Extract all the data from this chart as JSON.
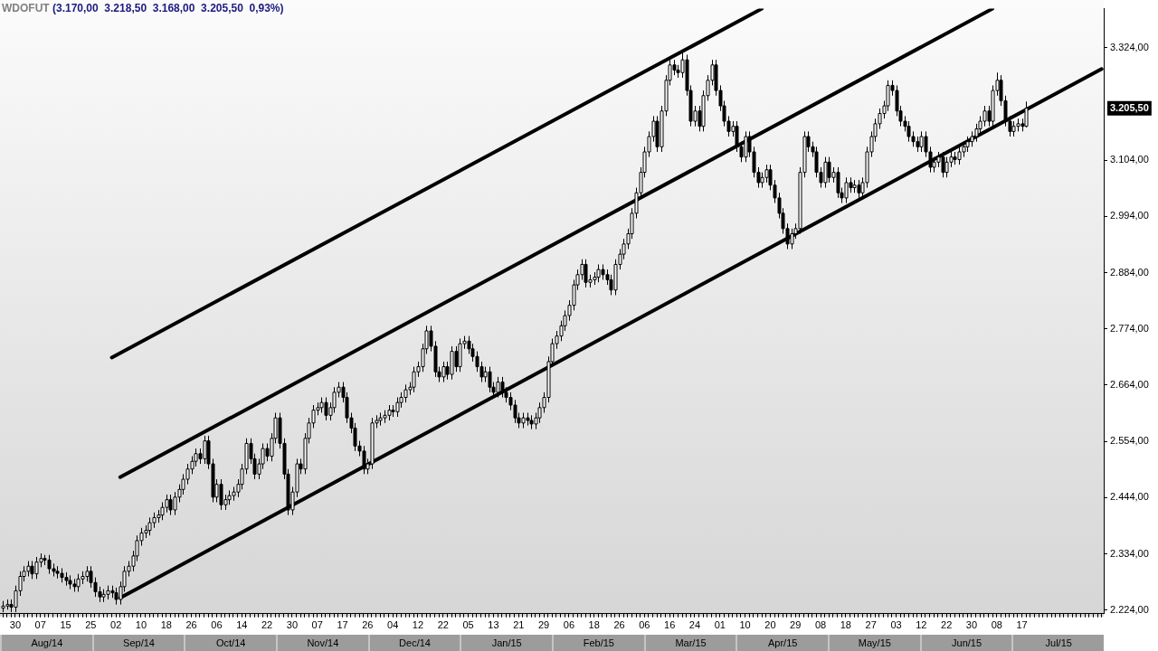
{
  "chart_data": {
    "type": "candlestick",
    "title": "WDOFUT",
    "subtitle": "(3.170,00  3.218,50  3.168,00  3.205,50  0,93%)",
    "categories": [
      null,
      null,
      null,
      "30",
      null,
      null,
      null,
      null,
      null,
      "07",
      null,
      null,
      null,
      null,
      null,
      "15",
      null,
      null,
      null,
      null,
      null,
      "25",
      null,
      null,
      null,
      null,
      null,
      "02",
      null,
      null,
      null,
      null,
      null,
      "10",
      null,
      null,
      null,
      null,
      null,
      "18",
      null,
      null,
      null,
      null,
      null,
      "26",
      null,
      null,
      null,
      null,
      null,
      "06",
      null,
      null,
      null,
      null,
      null,
      "14",
      null,
      null,
      null,
      null,
      null,
      "22",
      null,
      null,
      null,
      null,
      null,
      "30",
      null,
      null,
      null,
      null,
      null,
      "07",
      null,
      null,
      null,
      null,
      null,
      "17",
      null,
      null,
      null,
      null,
      null,
      "26",
      null,
      null,
      null,
      null,
      null,
      "04",
      null,
      null,
      null,
      null,
      null,
      "12",
      null,
      null,
      null,
      null,
      null,
      "22",
      null,
      null,
      null,
      null,
      null,
      "05",
      null,
      null,
      null,
      null,
      null,
      "13",
      null,
      null,
      null,
      null,
      null,
      "21",
      null,
      null,
      null,
      null,
      null,
      "29",
      null,
      null,
      null,
      null,
      null,
      "06",
      null,
      null,
      null,
      null,
      null,
      "18",
      null,
      null,
      null,
      null,
      null,
      "26",
      null,
      null,
      null,
      null,
      null,
      "06",
      null,
      null,
      null,
      null,
      null,
      "16",
      null,
      null,
      null,
      null,
      null,
      "24",
      null,
      null,
      null,
      null,
      null,
      "01",
      null,
      null,
      null,
      null,
      null,
      "10",
      null,
      null,
      null,
      null,
      null,
      "20",
      null,
      null,
      null,
      null,
      null,
      "29",
      null,
      null,
      null,
      null,
      null,
      "08",
      null,
      null,
      null,
      null,
      null,
      "18",
      null,
      null,
      null,
      null,
      null,
      "27",
      null,
      null,
      null,
      null,
      null,
      "03",
      null,
      null,
      null,
      null,
      null,
      "12",
      null,
      null,
      null,
      null,
      null,
      "22",
      null,
      null,
      null,
      null,
      null,
      "30",
      null,
      null,
      null,
      null,
      null,
      "08",
      null,
      null,
      null,
      null,
      null,
      "17",
      null,
      null,
      null,
      null,
      null,
      null,
      null,
      null,
      null,
      null,
      null,
      null,
      null,
      null,
      null,
      null,
      null,
      null,
      null
    ],
    "ohlc": [
      [
        2228,
        2242,
        2220,
        2232
      ],
      [
        2232,
        2245,
        2225,
        2235
      ],
      [
        2235,
        2245,
        2220,
        2230
      ],
      [
        2230,
        2272,
        2220,
        2262
      ],
      [
        2262,
        2300,
        2252,
        2290
      ],
      [
        2290,
        2310,
        2280,
        2300
      ],
      [
        2300,
        2320,
        2290,
        2310
      ],
      [
        2310,
        2320,
        2285,
        2295
      ],
      [
        2295,
        2328,
        2285,
        2318
      ],
      [
        2318,
        2335,
        2308,
        2325
      ],
      [
        2325,
        2332,
        2312,
        2322
      ],
      [
        2322,
        2332,
        2295,
        2305
      ],
      [
        2305,
        2315,
        2290,
        2300
      ],
      [
        2300,
        2310,
        2286,
        2296
      ],
      [
        2296,
        2306,
        2278,
        2288
      ],
      [
        2288,
        2298,
        2272,
        2282
      ],
      [
        2282,
        2292,
        2265,
        2275
      ],
      [
        2275,
        2285,
        2260,
        2270
      ],
      [
        2270,
        2295,
        2260,
        2285
      ],
      [
        2285,
        2300,
        2275,
        2290
      ],
      [
        2290,
        2310,
        2280,
        2300
      ],
      [
        2300,
        2310,
        2268,
        2278
      ],
      [
        2278,
        2288,
        2250,
        2260
      ],
      [
        2260,
        2270,
        2240,
        2250
      ],
      [
        2250,
        2265,
        2240,
        2255
      ],
      [
        2255,
        2272,
        2245,
        2262
      ],
      [
        2262,
        2272,
        2248,
        2258
      ],
      [
        2258,
        2268,
        2235,
        2245
      ],
      [
        2245,
        2280,
        2235,
        2270
      ],
      [
        2270,
        2310,
        2260,
        2300
      ],
      [
        2300,
        2320,
        2290,
        2310
      ],
      [
        2310,
        2340,
        2300,
        2330
      ],
      [
        2330,
        2370,
        2320,
        2360
      ],
      [
        2360,
        2385,
        2350,
        2375
      ],
      [
        2375,
        2390,
        2365,
        2380
      ],
      [
        2380,
        2405,
        2370,
        2395
      ],
      [
        2395,
        2415,
        2385,
        2405
      ],
      [
        2405,
        2420,
        2395,
        2410
      ],
      [
        2410,
        2435,
        2400,
        2425
      ],
      [
        2425,
        2450,
        2415,
        2440
      ],
      [
        2440,
        2450,
        2410,
        2420
      ],
      [
        2420,
        2455,
        2410,
        2445
      ],
      [
        2445,
        2470,
        2435,
        2460
      ],
      [
        2460,
        2490,
        2450,
        2480
      ],
      [
        2480,
        2510,
        2470,
        2500
      ],
      [
        2500,
        2525,
        2490,
        2515
      ],
      [
        2515,
        2540,
        2505,
        2530
      ],
      [
        2530,
        2540,
        2510,
        2520
      ],
      [
        2520,
        2565,
        2510,
        2555
      ],
      [
        2555,
        2565,
        2500,
        2510
      ],
      [
        2510,
        2520,
        2435,
        2445
      ],
      [
        2445,
        2480,
        2435,
        2470
      ],
      [
        2470,
        2480,
        2420,
        2430
      ],
      [
        2430,
        2450,
        2420,
        2440
      ],
      [
        2440,
        2458,
        2430,
        2448
      ],
      [
        2448,
        2465,
        2438,
        2455
      ],
      [
        2455,
        2480,
        2445,
        2470
      ],
      [
        2470,
        2510,
        2460,
        2500
      ],
      [
        2500,
        2560,
        2490,
        2550
      ],
      [
        2550,
        2560,
        2510,
        2520
      ],
      [
        2520,
        2530,
        2480,
        2490
      ],
      [
        2490,
        2520,
        2480,
        2510
      ],
      [
        2510,
        2550,
        2500,
        2540
      ],
      [
        2540,
        2550,
        2515,
        2525
      ],
      [
        2525,
        2570,
        2515,
        2560
      ],
      [
        2560,
        2610,
        2550,
        2600
      ],
      [
        2600,
        2610,
        2540,
        2550
      ],
      [
        2550,
        2560,
        2480,
        2490
      ],
      [
        2490,
        2500,
        2410,
        2420
      ],
      [
        2420,
        2465,
        2410,
        2455
      ],
      [
        2455,
        2520,
        2445,
        2510
      ],
      [
        2510,
        2520,
        2490,
        2500
      ],
      [
        2500,
        2570,
        2490,
        2560
      ],
      [
        2560,
        2600,
        2550,
        2590
      ],
      [
        2590,
        2625,
        2580,
        2615
      ],
      [
        2615,
        2630,
        2605,
        2620
      ],
      [
        2620,
        2640,
        2610,
        2630
      ],
      [
        2630,
        2640,
        2595,
        2605
      ],
      [
        2605,
        2630,
        2595,
        2620
      ],
      [
        2620,
        2660,
        2610,
        2650
      ],
      [
        2650,
        2670,
        2640,
        2660
      ],
      [
        2660,
        2670,
        2630,
        2640
      ],
      [
        2640,
        2650,
        2590,
        2600
      ],
      [
        2600,
        2610,
        2570,
        2580
      ],
      [
        2580,
        2590,
        2535,
        2545
      ],
      [
        2545,
        2555,
        2525,
        2535
      ],
      [
        2535,
        2545,
        2490,
        2500
      ],
      [
        2500,
        2520,
        2490,
        2510
      ],
      [
        2510,
        2600,
        2500,
        2590
      ],
      [
        2590,
        2605,
        2580,
        2595
      ],
      [
        2595,
        2610,
        2585,
        2600
      ],
      [
        2600,
        2615,
        2590,
        2605
      ],
      [
        2605,
        2625,
        2595,
        2615
      ],
      [
        2615,
        2625,
        2602,
        2612
      ],
      [
        2612,
        2640,
        2602,
        2630
      ],
      [
        2630,
        2650,
        2620,
        2640
      ],
      [
        2640,
        2665,
        2630,
        2655
      ],
      [
        2655,
        2670,
        2645,
        2660
      ],
      [
        2660,
        2700,
        2650,
        2690
      ],
      [
        2690,
        2710,
        2680,
        2700
      ],
      [
        2700,
        2745,
        2690,
        2735
      ],
      [
        2735,
        2780,
        2725,
        2770
      ],
      [
        2770,
        2780,
        2730,
        2740
      ],
      [
        2740,
        2750,
        2680,
        2690
      ],
      [
        2690,
        2700,
        2670,
        2680
      ],
      [
        2680,
        2710,
        2670,
        2700
      ],
      [
        2700,
        2710,
        2675,
        2685
      ],
      [
        2685,
        2740,
        2675,
        2730
      ],
      [
        2730,
        2740,
        2690,
        2700
      ],
      [
        2700,
        2755,
        2690,
        2745
      ],
      [
        2745,
        2760,
        2735,
        2750
      ],
      [
        2750,
        2760,
        2725,
        2735
      ],
      [
        2735,
        2745,
        2710,
        2720
      ],
      [
        2720,
        2730,
        2690,
        2700
      ],
      [
        2700,
        2710,
        2670,
        2680
      ],
      [
        2680,
        2700,
        2670,
        2690
      ],
      [
        2690,
        2700,
        2650,
        2660
      ],
      [
        2660,
        2670,
        2640,
        2650
      ],
      [
        2650,
        2680,
        2640,
        2670
      ],
      [
        2670,
        2680,
        2640,
        2650
      ],
      [
        2650,
        2660,
        2630,
        2640
      ],
      [
        2640,
        2650,
        2615,
        2625
      ],
      [
        2625,
        2635,
        2590,
        2600
      ],
      [
        2600,
        2610,
        2580,
        2590
      ],
      [
        2590,
        2610,
        2580,
        2600
      ],
      [
        2600,
        2610,
        2585,
        2595
      ],
      [
        2595,
        2605,
        2578,
        2588
      ],
      [
        2588,
        2610,
        2578,
        2600
      ],
      [
        2600,
        2630,
        2590,
        2620
      ],
      [
        2620,
        2650,
        2610,
        2640
      ],
      [
        2640,
        2720,
        2630,
        2710
      ],
      [
        2710,
        2755,
        2700,
        2745
      ],
      [
        2745,
        2770,
        2735,
        2760
      ],
      [
        2760,
        2790,
        2750,
        2780
      ],
      [
        2780,
        2810,
        2770,
        2800
      ],
      [
        2800,
        2830,
        2790,
        2820
      ],
      [
        2820,
        2870,
        2810,
        2860
      ],
      [
        2860,
        2890,
        2850,
        2880
      ],
      [
        2880,
        2910,
        2870,
        2900
      ],
      [
        2900,
        2910,
        2855,
        2865
      ],
      [
        2865,
        2880,
        2855,
        2870
      ],
      [
        2870,
        2885,
        2860,
        2875
      ],
      [
        2875,
        2900,
        2865,
        2890
      ],
      [
        2890,
        2900,
        2870,
        2880
      ],
      [
        2880,
        2890,
        2860,
        2870
      ],
      [
        2870,
        2880,
        2840,
        2850
      ],
      [
        2850,
        2910,
        2840,
        2900
      ],
      [
        2900,
        2930,
        2890,
        2920
      ],
      [
        2920,
        2950,
        2910,
        2940
      ],
      [
        2940,
        2970,
        2930,
        2960
      ],
      [
        2960,
        3010,
        2950,
        3000
      ],
      [
        3000,
        3050,
        2990,
        3040
      ],
      [
        3040,
        3090,
        3030,
        3080
      ],
      [
        3080,
        3130,
        3070,
        3120
      ],
      [
        3120,
        3160,
        3110,
        3150
      ],
      [
        3150,
        3190,
        3140,
        3180
      ],
      [
        3180,
        3190,
        3120,
        3130
      ],
      [
        3130,
        3210,
        3120,
        3200
      ],
      [
        3200,
        3270,
        3190,
        3260
      ],
      [
        3260,
        3300,
        3250,
        3290
      ],
      [
        3290,
        3300,
        3270,
        3280
      ],
      [
        3280,
        3290,
        3265,
        3275
      ],
      [
        3275,
        3320,
        3265,
        3300
      ],
      [
        3300,
        3310,
        3230,
        3240
      ],
      [
        3240,
        3250,
        3170,
        3180
      ],
      [
        3180,
        3210,
        3170,
        3200
      ],
      [
        3200,
        3210,
        3160,
        3170
      ],
      [
        3170,
        3240,
        3160,
        3230
      ],
      [
        3230,
        3270,
        3220,
        3260
      ],
      [
        3260,
        3300,
        3250,
        3290
      ],
      [
        3290,
        3300,
        3230,
        3240
      ],
      [
        3240,
        3250,
        3200,
        3210
      ],
      [
        3210,
        3220,
        3170,
        3180
      ],
      [
        3180,
        3190,
        3150,
        3160
      ],
      [
        3160,
        3180,
        3150,
        3170
      ],
      [
        3170,
        3180,
        3120,
        3130
      ],
      [
        3130,
        3140,
        3100,
        3110
      ],
      [
        3110,
        3160,
        3100,
        3150
      ],
      [
        3150,
        3160,
        3110,
        3120
      ],
      [
        3120,
        3130,
        3070,
        3080
      ],
      [
        3080,
        3090,
        3050,
        3060
      ],
      [
        3060,
        3080,
        3050,
        3070
      ],
      [
        3070,
        3095,
        3060,
        3085
      ],
      [
        3085,
        3095,
        3045,
        3055
      ],
      [
        3055,
        3065,
        3020,
        3030
      ],
      [
        3030,
        3040,
        2990,
        3000
      ],
      [
        3000,
        3010,
        2960,
        2970
      ],
      [
        2970,
        2980,
        2930,
        2940
      ],
      [
        2940,
        2970,
        2930,
        2960
      ],
      [
        2960,
        2980,
        2950,
        2970
      ],
      [
        2970,
        3090,
        2960,
        3080
      ],
      [
        3080,
        3160,
        3070,
        3150
      ],
      [
        3150,
        3160,
        3120,
        3130
      ],
      [
        3130,
        3140,
        3110,
        3120
      ],
      [
        3120,
        3130,
        3070,
        3080
      ],
      [
        3080,
        3090,
        3050,
        3060
      ],
      [
        3060,
        3110,
        3050,
        3100
      ],
      [
        3100,
        3110,
        3060,
        3070
      ],
      [
        3070,
        3090,
        3060,
        3080
      ],
      [
        3080,
        3090,
        3030,
        3040
      ],
      [
        3040,
        3050,
        3020,
        3030
      ],
      [
        3030,
        3070,
        3020,
        3060
      ],
      [
        3060,
        3070,
        3040,
        3050
      ],
      [
        3050,
        3065,
        3040,
        3055
      ],
      [
        3055,
        3065,
        3030,
        3040
      ],
      [
        3040,
        3070,
        3030,
        3060
      ],
      [
        3060,
        3130,
        3050,
        3120
      ],
      [
        3120,
        3160,
        3110,
        3150
      ],
      [
        3150,
        3185,
        3140,
        3175
      ],
      [
        3175,
        3205,
        3165,
        3195
      ],
      [
        3195,
        3220,
        3185,
        3210
      ],
      [
        3210,
        3260,
        3200,
        3250
      ],
      [
        3250,
        3260,
        3230,
        3240
      ],
      [
        3240,
        3250,
        3190,
        3200
      ],
      [
        3200,
        3210,
        3170,
        3180
      ],
      [
        3180,
        3190,
        3160,
        3170
      ],
      [
        3170,
        3180,
        3140,
        3150
      ],
      [
        3150,
        3160,
        3130,
        3140
      ],
      [
        3140,
        3150,
        3120,
        3130
      ],
      [
        3130,
        3160,
        3120,
        3150
      ],
      [
        3150,
        3160,
        3110,
        3120
      ],
      [
        3120,
        3130,
        3080,
        3090
      ],
      [
        3090,
        3110,
        3080,
        3100
      ],
      [
        3100,
        3120,
        3090,
        3110
      ],
      [
        3110,
        3120,
        3070,
        3080
      ],
      [
        3080,
        3110,
        3070,
        3100
      ],
      [
        3100,
        3120,
        3090,
        3110
      ],
      [
        3110,
        3120,
        3095,
        3105
      ],
      [
        3105,
        3130,
        3095,
        3120
      ],
      [
        3120,
        3140,
        3110,
        3130
      ],
      [
        3130,
        3150,
        3120,
        3140
      ],
      [
        3140,
        3160,
        3130,
        3150
      ],
      [
        3150,
        3175,
        3140,
        3165
      ],
      [
        3165,
        3190,
        3155,
        3180
      ],
      [
        3180,
        3210,
        3170,
        3200
      ],
      [
        3200,
        3210,
        3170,
        3180
      ],
      [
        3180,
        3250,
        3170,
        3240
      ],
      [
        3240,
        3275,
        3230,
        3260
      ],
      [
        3260,
        3270,
        3210,
        3220
      ],
      [
        3220,
        3230,
        3170,
        3180
      ],
      [
        3180,
        3190,
        3150,
        3160
      ],
      [
        3160,
        3180,
        3150,
        3170
      ],
      [
        3170,
        3185,
        3160,
        3175
      ],
      [
        3175,
        3185,
        3160,
        3170
      ],
      [
        3170,
        3218.5,
        3168,
        3205.5
      ],
      null,
      null,
      null,
      null,
      null,
      null,
      null,
      null,
      null,
      null,
      null,
      null,
      null,
      null,
      null,
      null,
      null,
      null
    ],
    "series": [
      {
        "type": "line",
        "color": "#000000",
        "values": [
          null,
          null,
          null,
          null,
          null,
          null,
          null,
          null,
          null,
          null,
          null,
          null,
          null,
          null,
          null,
          null,
          null,
          null,
          null,
          null,
          null,
          null,
          null,
          null,
          null,
          null,
          2718,
          null,
          null,
          null,
          null,
          null,
          null,
          null,
          null,
          null,
          null,
          null,
          null,
          null,
          null,
          null,
          null,
          null,
          null,
          null,
          null,
          null,
          null,
          null,
          null,
          null,
          null,
          null,
          null,
          null,
          null,
          null,
          null,
          null,
          null,
          null,
          null,
          null,
          null,
          null,
          null,
          null,
          null,
          null,
          null,
          null,
          null,
          null,
          null,
          null,
          null,
          null,
          null,
          null,
          null,
          null,
          null,
          null,
          null,
          null,
          null,
          null,
          null,
          null,
          null,
          null,
          null,
          null,
          null,
          null,
          null,
          null,
          null,
          null,
          null,
          null,
          null,
          null,
          null,
          null,
          null,
          null,
          null,
          null,
          null,
          null,
          null,
          null,
          null,
          null,
          null,
          null,
          null,
          null,
          null,
          null,
          null,
          null,
          null,
          null,
          null,
          null,
          null,
          null,
          null,
          null,
          null,
          null,
          null,
          null,
          null,
          null,
          null,
          null,
          null,
          null,
          null,
          null,
          null,
          null,
          null,
          null,
          null,
          null,
          null,
          null,
          null,
          null,
          null,
          null,
          null,
          null,
          null,
          null,
          null,
          null,
          null,
          null,
          null,
          null,
          null,
          null,
          null,
          null,
          null,
          null,
          null,
          null,
          null,
          null,
          null,
          null,
          null,
          null,
          null,
          3400,
          null,
          null,
          null,
          null,
          null,
          null,
          null,
          null,
          null,
          null,
          null,
          null,
          null,
          null,
          null,
          null,
          null,
          null,
          null,
          null,
          null,
          null,
          null,
          null,
          null,
          null,
          null,
          null,
          null,
          null,
          null,
          null,
          null,
          null,
          null,
          null,
          null,
          null,
          null,
          null,
          null,
          null,
          null,
          null,
          null,
          null,
          null,
          null,
          null,
          null,
          null,
          null,
          null,
          null,
          null,
          null,
          null,
          null,
          null,
          null,
          null,
          null,
          null,
          null,
          null,
          null,
          null,
          null,
          null,
          null,
          null,
          null,
          null,
          null,
          null,
          null,
          null,
          null,
          null,
          null,
          null
        ]
      },
      {
        "type": "line",
        "color": "#000000",
        "values": [
          null,
          null,
          null,
          null,
          null,
          null,
          null,
          null,
          null,
          null,
          null,
          null,
          null,
          null,
          null,
          null,
          null,
          null,
          null,
          null,
          null,
          null,
          null,
          null,
          null,
          null,
          null,
          null,
          2484,
          null,
          null,
          null,
          null,
          null,
          null,
          null,
          null,
          null,
          null,
          null,
          null,
          null,
          null,
          null,
          null,
          null,
          null,
          null,
          null,
          null,
          null,
          null,
          null,
          null,
          null,
          null,
          null,
          null,
          null,
          null,
          null,
          null,
          null,
          null,
          null,
          null,
          null,
          null,
          null,
          null,
          null,
          null,
          null,
          null,
          null,
          null,
          null,
          null,
          null,
          null,
          null,
          null,
          null,
          null,
          null,
          null,
          null,
          null,
          null,
          null,
          null,
          null,
          null,
          null,
          null,
          null,
          null,
          null,
          null,
          null,
          null,
          null,
          null,
          null,
          null,
          null,
          null,
          null,
          null,
          null,
          null,
          null,
          null,
          null,
          null,
          null,
          null,
          null,
          null,
          null,
          null,
          null,
          null,
          null,
          null,
          null,
          null,
          null,
          null,
          null,
          null,
          null,
          null,
          null,
          null,
          null,
          null,
          null,
          null,
          null,
          null,
          null,
          null,
          null,
          null,
          null,
          null,
          null,
          null,
          null,
          null,
          null,
          null,
          null,
          null,
          null,
          null,
          null,
          null,
          null,
          null,
          null,
          null,
          null,
          null,
          null,
          null,
          null,
          null,
          null,
          null,
          null,
          null,
          null,
          null,
          null,
          null,
          null,
          null,
          null,
          null,
          null,
          null,
          null,
          null,
          null,
          null,
          null,
          null,
          null,
          null,
          null,
          null,
          null,
          null,
          null,
          null,
          null,
          null,
          null,
          null,
          null,
          null,
          null,
          null,
          null,
          null,
          null,
          null,
          null,
          null,
          null,
          null,
          null,
          null,
          null,
          null,
          null,
          null,
          null,
          null,
          null,
          null,
          null,
          null,
          null,
          null,
          null,
          null,
          null,
          null,
          null,
          null,
          null,
          null,
          null,
          3400,
          null,
          null,
          null,
          null,
          null,
          null,
          null,
          null,
          null,
          null,
          null,
          null,
          null,
          null,
          null,
          null,
          null,
          null,
          null,
          null,
          null,
          null,
          null,
          null,
          null,
          null
        ]
      },
      {
        "type": "line",
        "color": "#000000",
        "values": [
          null,
          null,
          null,
          null,
          null,
          null,
          null,
          null,
          null,
          null,
          null,
          null,
          null,
          null,
          null,
          null,
          null,
          null,
          null,
          null,
          null,
          null,
          null,
          null,
          null,
          null,
          null,
          null,
          2248,
          null,
          null,
          null,
          null,
          null,
          null,
          null,
          null,
          null,
          null,
          null,
          null,
          null,
          null,
          null,
          null,
          null,
          null,
          null,
          null,
          null,
          null,
          null,
          null,
          null,
          null,
          null,
          null,
          null,
          null,
          null,
          null,
          null,
          null,
          null,
          null,
          null,
          null,
          null,
          null,
          null,
          null,
          null,
          null,
          null,
          null,
          null,
          null,
          null,
          null,
          null,
          null,
          null,
          null,
          null,
          null,
          null,
          null,
          null,
          null,
          null,
          null,
          null,
          null,
          null,
          null,
          null,
          null,
          null,
          null,
          null,
          null,
          null,
          null,
          null,
          null,
          null,
          null,
          null,
          null,
          null,
          null,
          null,
          null,
          null,
          null,
          null,
          null,
          null,
          null,
          null,
          null,
          null,
          null,
          null,
          null,
          null,
          null,
          null,
          null,
          null,
          null,
          null,
          null,
          null,
          null,
          null,
          null,
          null,
          null,
          null,
          null,
          null,
          null,
          null,
          null,
          null,
          null,
          null,
          null,
          null,
          null,
          null,
          null,
          null,
          null,
          null,
          null,
          null,
          null,
          null,
          null,
          null,
          null,
          null,
          null,
          null,
          null,
          null,
          null,
          null,
          null,
          null,
          null,
          null,
          null,
          null,
          null,
          null,
          null,
          null,
          null,
          null,
          null,
          null,
          null,
          null,
          null,
          null,
          null,
          null,
          null,
          null,
          null,
          null,
          null,
          null,
          null,
          null,
          null,
          null,
          null,
          null,
          null,
          null,
          null,
          null,
          null,
          null,
          null,
          null,
          null,
          null,
          null,
          null,
          null,
          null,
          null,
          null,
          null,
          null,
          null,
          null,
          null,
          null,
          null,
          null,
          null,
          null,
          null,
          null,
          null,
          null,
          null,
          null,
          null,
          null,
          null,
          null,
          null,
          null,
          null,
          null,
          null,
          null,
          null,
          null,
          null,
          null,
          null,
          null,
          null,
          null,
          null,
          null,
          null,
          null,
          null,
          null,
          null,
          null,
          null,
          null,
          3282
        ]
      }
    ],
    "ylim": [
      2217,
      3400
    ],
    "yticks": [
      {
        "value": 2224,
        "label": "2.224,00"
      },
      {
        "value": 2334,
        "label": "2.334,00"
      },
      {
        "value": 2444,
        "label": "2.444,00"
      },
      {
        "value": 2554,
        "label": "2.554,00"
      },
      {
        "value": 2664,
        "label": "2.664,00"
      },
      {
        "value": 2774,
        "label": "2.774,00"
      },
      {
        "value": 2884,
        "label": "2.884,00"
      },
      {
        "value": 2994,
        "label": "2.994,00"
      },
      {
        "value": 3104,
        "label": "3.104,00"
      },
      {
        "value": 3324,
        "label": "3.324,00"
      }
    ],
    "annotations": [
      "Aug/14",
      "Sep/14",
      "Oct/14",
      "Nov/14",
      "Dec/14",
      "Jan/15",
      "Feb/15",
      "Mar/15",
      "Apr/15",
      "May/15",
      "Jun/15",
      "Jul/15",
      "3.205,50"
    ],
    "legend": false,
    "grid": false
  }
}
